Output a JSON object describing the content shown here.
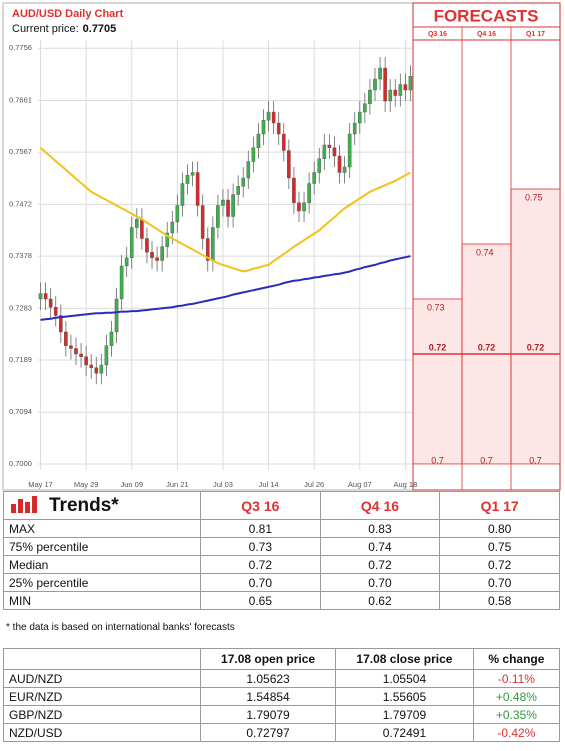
{
  "chart_data": [
    {
      "type": "candlestick",
      "title": "AUD/USD Daily Chart",
      "subtitle": "Current price:",
      "current_price": 0.7705,
      "categories": [
        "May 17",
        null,
        null,
        null,
        null,
        null,
        null,
        null,
        null,
        "May 29",
        null,
        null,
        null,
        null,
        null,
        null,
        null,
        null,
        "Jun 09",
        null,
        null,
        null,
        null,
        null,
        null,
        null,
        null,
        "Jun 21",
        null,
        null,
        null,
        null,
        null,
        null,
        null,
        null,
        "Jul 03",
        null,
        null,
        null,
        null,
        null,
        null,
        null,
        null,
        "Jul 14",
        null,
        null,
        null,
        null,
        null,
        null,
        null,
        null,
        "Jul 26",
        null,
        null,
        null,
        null,
        null,
        null,
        null,
        null,
        "Aug 07",
        null,
        null,
        null,
        null,
        null,
        null,
        null,
        null,
        "Aug 18",
        null
      ],
      "open": [
        0.73,
        0.731,
        0.73,
        0.7285,
        0.727,
        0.724,
        0.7215,
        0.721,
        0.72,
        0.7195,
        0.718,
        0.7175,
        0.7165,
        0.718,
        0.7215,
        0.724,
        0.73,
        0.736,
        0.7375,
        0.743,
        0.7445,
        0.741,
        0.7385,
        0.7375,
        0.737,
        0.7395,
        0.742,
        0.744,
        0.747,
        0.751,
        0.7525,
        0.753,
        0.747,
        0.741,
        0.737,
        0.743,
        0.747,
        0.748,
        0.745,
        0.749,
        0.7505,
        0.752,
        0.755,
        0.7575,
        0.76,
        0.7625,
        0.764,
        0.762,
        0.76,
        0.757,
        0.752,
        0.7475,
        0.746,
        0.7475,
        0.751,
        0.753,
        0.7555,
        0.758,
        0.7575,
        0.756,
        0.753,
        0.754,
        0.76,
        0.762,
        0.764,
        0.7655,
        0.768,
        0.77,
        0.772,
        0.766,
        0.768,
        0.767,
        0.769,
        0.768
      ],
      "high": [
        0.733,
        0.733,
        0.732,
        0.7305,
        0.729,
        0.726,
        0.7235,
        0.723,
        0.722,
        0.7215,
        0.72,
        0.7195,
        0.72,
        0.7235,
        0.726,
        0.732,
        0.738,
        0.7395,
        0.745,
        0.7465,
        0.7465,
        0.743,
        0.7405,
        0.7395,
        0.7415,
        0.744,
        0.746,
        0.749,
        0.753,
        0.7545,
        0.755,
        0.755,
        0.749,
        0.743,
        0.745,
        0.749,
        0.75,
        0.75,
        0.751,
        0.7525,
        0.754,
        0.757,
        0.7595,
        0.762,
        0.7645,
        0.766,
        0.766,
        0.764,
        0.762,
        0.759,
        0.754,
        0.7495,
        0.7495,
        0.753,
        0.755,
        0.7575,
        0.76,
        0.76,
        0.7595,
        0.758,
        0.756,
        0.762,
        0.764,
        0.766,
        0.7675,
        0.77,
        0.772,
        0.774,
        0.774,
        0.77,
        0.77,
        0.771,
        0.771,
        0.7725
      ],
      "low": [
        0.728,
        0.728,
        0.7265,
        0.725,
        0.722,
        0.7195,
        0.719,
        0.718,
        0.7175,
        0.716,
        0.7155,
        0.7145,
        0.7145,
        0.716,
        0.7195,
        0.722,
        0.728,
        0.734,
        0.7355,
        0.741,
        0.739,
        0.7365,
        0.7355,
        0.735,
        0.735,
        0.7375,
        0.74,
        0.742,
        0.745,
        0.749,
        0.7505,
        0.745,
        0.739,
        0.735,
        0.735,
        0.741,
        0.745,
        0.743,
        0.743,
        0.747,
        0.7485,
        0.75,
        0.753,
        0.7555,
        0.758,
        0.7605,
        0.76,
        0.758,
        0.755,
        0.75,
        0.7455,
        0.744,
        0.744,
        0.7455,
        0.749,
        0.751,
        0.7535,
        0.7555,
        0.754,
        0.751,
        0.751,
        0.752,
        0.758,
        0.76,
        0.762,
        0.7635,
        0.766,
        0.768,
        0.764,
        0.764,
        0.765,
        0.765,
        0.766,
        0.766
      ],
      "close": [
        0.731,
        0.73,
        0.7285,
        0.727,
        0.724,
        0.7215,
        0.721,
        0.72,
        0.7195,
        0.718,
        0.7175,
        0.7165,
        0.718,
        0.7215,
        0.724,
        0.73,
        0.736,
        0.7375,
        0.743,
        0.7445,
        0.741,
        0.7385,
        0.7375,
        0.737,
        0.7395,
        0.742,
        0.744,
        0.747,
        0.751,
        0.7525,
        0.753,
        0.747,
        0.741,
        0.737,
        0.743,
        0.747,
        0.748,
        0.745,
        0.749,
        0.7505,
        0.752,
        0.755,
        0.7575,
        0.76,
        0.7625,
        0.764,
        0.762,
        0.76,
        0.757,
        0.752,
        0.7475,
        0.746,
        0.7475,
        0.751,
        0.753,
        0.7555,
        0.758,
        0.7575,
        0.756,
        0.753,
        0.754,
        0.76,
        0.762,
        0.764,
        0.7655,
        0.768,
        0.77,
        0.772,
        0.766,
        0.768,
        0.767,
        0.769,
        0.768,
        0.7705
      ],
      "up_color": "#3cb04a",
      "down_color": "#d42a2a",
      "lines": [
        {
          "color": "#f2c21b",
          "values": [
            0.7575,
            0.7567,
            0.7559,
            0.7551,
            0.7543,
            0.7535,
            0.7527,
            0.7519,
            0.7511,
            0.7503,
            0.7495,
            0.749,
            0.7485,
            0.748,
            0.7475,
            0.747,
            0.7465,
            0.746,
            0.7455,
            0.745,
            0.7445,
            0.7439,
            0.7433,
            0.7427,
            0.7421,
            0.7415,
            0.741,
            0.7405,
            0.74,
            0.7395,
            0.739,
            0.7385,
            0.738,
            0.7375,
            0.737,
            0.7365,
            0.7362,
            0.7359,
            0.7356,
            0.7353,
            0.735,
            0.7352,
            0.7355,
            0.7357,
            0.736,
            0.7362,
            0.7369,
            0.7375,
            0.7382,
            0.7388,
            0.7395,
            0.7401,
            0.7407,
            0.7413,
            0.7419,
            0.7425,
            0.7433,
            0.7441,
            0.7449,
            0.7457,
            0.7465,
            0.7471,
            0.7477,
            0.7483,
            0.7489,
            0.7495,
            0.7499,
            0.7503,
            0.7507,
            0.7511,
            0.7515,
            0.752,
            0.7525,
            0.753
          ]
        },
        {
          "color": "#2a2ac0",
          "values": [
            0.7262,
            0.7263,
            0.7264,
            0.7266,
            0.7267,
            0.7268,
            0.7269,
            0.727,
            0.7271,
            0.7272,
            0.7273,
            0.7274,
            0.7274,
            0.7275,
            0.7275,
            0.7276,
            0.7277,
            0.7277,
            0.7278,
            0.7278,
            0.7279,
            0.728,
            0.7281,
            0.7282,
            0.7283,
            0.7284,
            0.7285,
            0.7287,
            0.7288,
            0.729,
            0.7291,
            0.7293,
            0.7295,
            0.7297,
            0.7299,
            0.7301,
            0.7303,
            0.7305,
            0.7308,
            0.731,
            0.7312,
            0.7314,
            0.7316,
            0.7318,
            0.732,
            0.7322,
            0.7324,
            0.7326,
            0.7329,
            0.7331,
            0.7333,
            0.7334,
            0.7336,
            0.7337,
            0.7339,
            0.734,
            0.7342,
            0.7343,
            0.7345,
            0.7346,
            0.7348,
            0.735,
            0.7353,
            0.7355,
            0.7358,
            0.736,
            0.7362,
            0.7365,
            0.7367,
            0.737,
            0.7372,
            0.7374,
            0.7376,
            0.7378
          ]
        }
      ],
      "ylim": [
        0.6989,
        0.7771
      ],
      "yticks": [
        {
          "value": 0.7,
          "label": "0.7000"
        },
        0.7094,
        0.7189,
        0.7283,
        0.7378,
        0.7472,
        0.7567,
        0.7661,
        0.7756
      ],
      "grid": true
    },
    {
      "type": "range",
      "title": "FORECASTS",
      "categories": [
        "Q3 16",
        "Q4 16",
        "Q1 17"
      ],
      "upper": [
        0.73,
        0.74,
        0.75
      ],
      "median": [
        0.72,
        0.72,
        0.72
      ],
      "lower": [
        0.7,
        0.7,
        0.7
      ],
      "color": "#e03030",
      "fill": "#fde6e6",
      "ylim": [
        0.6989,
        0.7771
      ]
    }
  ],
  "trends": {
    "title": "Trends*",
    "columns": [
      "Q3 16",
      "Q4 16",
      "Q1 17"
    ],
    "rows": [
      [
        "MAX",
        "0.81",
        "0.83",
        "0.80"
      ],
      [
        "75% percentile",
        "0.73",
        "0.74",
        "0.75"
      ],
      [
        "Median",
        "0.72",
        "0.72",
        "0.72"
      ],
      [
        "25% percentile",
        "0.70",
        "0.70",
        "0.70"
      ],
      [
        "MIN",
        "0.65",
        "0.62",
        "0.58"
      ]
    ]
  },
  "footnote": "* the data is based on international banks' forecasts",
  "prices": {
    "columns": [
      "17.08 open price",
      "17.08 close price",
      "% change"
    ],
    "rows": [
      [
        "AUD/NZD",
        "1.05623",
        "1.05504",
        "-0.11%"
      ],
      [
        "EUR/NZD",
        "1.54854",
        "1.55605",
        "+0.48%"
      ],
      [
        "GBP/NZD",
        "1.79079",
        "1.79709",
        "+0.35%"
      ],
      [
        "NZD/USD",
        "0.72797",
        "0.72491",
        "-0.42%"
      ]
    ]
  }
}
